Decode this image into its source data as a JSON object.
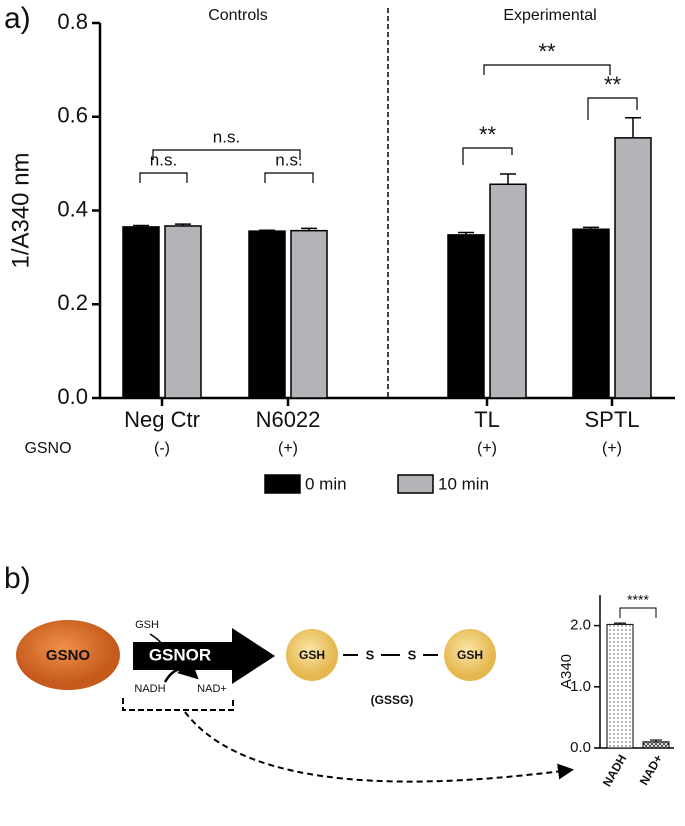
{
  "panel_labels": [
    "a)",
    "b)"
  ],
  "chart_data": [
    {
      "type": "bar",
      "ylabel": "1/A340 nm",
      "section_labels": [
        "Controls",
        "Experimental"
      ],
      "categories": [
        "Neg Ctr",
        "N6022",
        "TL",
        "SPTL"
      ],
      "row_label": "GSNO",
      "row_values": [
        "(-)",
        "(+)",
        "(+)",
        "(+)"
      ],
      "series": [
        {
          "name": "0 min",
          "color": "#000000",
          "values": [
            0.365,
            0.356,
            0.348,
            0.36
          ],
          "errors": [
            0.003,
            0.002,
            0.005,
            0.004
          ]
        },
        {
          "name": "10 min",
          "color": "#b3b3b8",
          "values": [
            0.367,
            0.357,
            0.456,
            0.555
          ],
          "errors": [
            0.004,
            0.005,
            0.022,
            0.043
          ]
        }
      ],
      "ylim": [
        0,
        0.8
      ],
      "yticks": [
        {
          "value": 0,
          "label": "0.0"
        },
        0.2,
        0.4,
        0.6,
        0.8
      ],
      "annotations": [
        "n.s.",
        "n.s.",
        "n.s.",
        "**",
        "**",
        "**"
      ]
    },
    {
      "type": "bar",
      "ylabel": "A340",
      "categories": [
        "NADH",
        "NAD+"
      ],
      "values": [
        2.02,
        0.1
      ],
      "errors": [
        0.02,
        0.03
      ],
      "ylim": [
        0,
        2.5
      ],
      "yticks": [
        {
          "value": 0,
          "label": "0.0"
        },
        {
          "value": 1,
          "label": "1.0"
        },
        {
          "value": 2,
          "label": "2.0"
        }
      ],
      "annotations": [
        "****"
      ]
    }
  ],
  "diagram": {
    "substrate": "GSNO",
    "cofactor_in": "GSH",
    "enzyme": "GSNOR",
    "nadh": "NADH",
    "nad": "NAD+",
    "product_left": "GSH",
    "bond_left": "S",
    "bond_right": "S",
    "product_right": "GSH",
    "product_name": "(GSSG)"
  }
}
